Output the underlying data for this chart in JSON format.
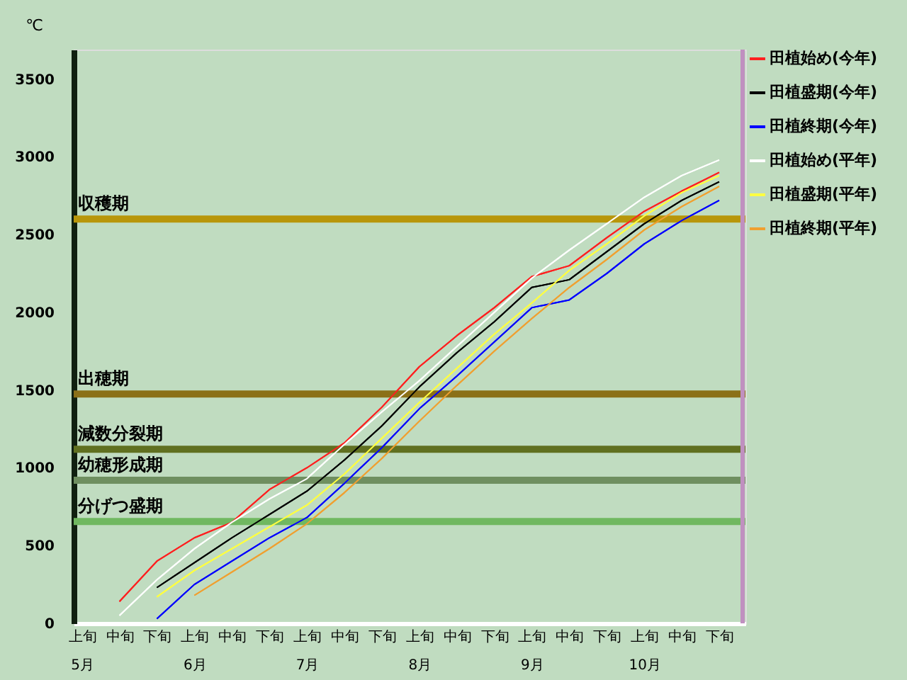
{
  "chart_data": {
    "type": "line",
    "ylabel": "℃",
    "ylim": [
      0,
      3690
    ],
    "categories": [
      "上旬\n5月",
      "中旬",
      "下旬",
      "上旬\n6月",
      "中旬",
      "下旬",
      "上旬\n7月",
      "中旬",
      "下旬",
      "上旬\n8月",
      "中旬",
      "下旬",
      "上旬\n9月",
      "中旬",
      "下旬",
      "上旬\n10月",
      "中旬",
      "下旬"
    ],
    "yticks": [
      0,
      500,
      1000,
      1500,
      2000,
      2500,
      3000,
      3500
    ],
    "grid": false,
    "legend": "right",
    "marker": "none",
    "line_style": "solid",
    "series": [
      {
        "name": "田植始め(今年)",
        "color": "#ff2020",
        "values": [
          null,
          140,
          400,
          550,
          650,
          860,
          1000,
          1160,
          1390,
          1650,
          1850,
          2030,
          2230,
          2300,
          2480,
          2650,
          2780,
          2900
        ]
      },
      {
        "name": "田植盛期(今年)",
        "color": "#000000",
        "values": [
          null,
          null,
          230,
          390,
          550,
          700,
          850,
          1050,
          1270,
          1520,
          1740,
          1940,
          2160,
          2210,
          2390,
          2570,
          2720,
          2840
        ]
      },
      {
        "name": "田植終期(今年)",
        "color": "#0000ff",
        "values": [
          null,
          null,
          30,
          250,
          400,
          550,
          680,
          900,
          1130,
          1380,
          1590,
          1810,
          2030,
          2080,
          2250,
          2440,
          2590,
          2720
        ]
      },
      {
        "name": "田植始め(平年)",
        "color": "#ffffff",
        "values": [
          null,
          50,
          280,
          480,
          650,
          800,
          930,
          1150,
          1360,
          1560,
          1780,
          2000,
          2220,
          2400,
          2570,
          2740,
          2880,
          2980
        ]
      },
      {
        "name": "田植盛期(平年)",
        "color": "#ffff40",
        "values": [
          null,
          null,
          170,
          340,
          480,
          620,
          760,
          960,
          1190,
          1420,
          1640,
          1860,
          2060,
          2270,
          2440,
          2620,
          2770,
          2880
        ]
      },
      {
        "name": "田植終期(平年)",
        "color": "#f0a030",
        "values": [
          null,
          null,
          null,
          180,
          330,
          480,
          640,
          840,
          1060,
          1300,
          1530,
          1750,
          1960,
          2160,
          2340,
          2530,
          2680,
          2810
        ]
      }
    ],
    "ref_lines": [
      {
        "axis": "y",
        "value": 2600,
        "label": "収穫期",
        "color": "#b8960a"
      },
      {
        "axis": "y",
        "value": 1475,
        "label": "出穂期",
        "color": "#8b7018"
      },
      {
        "axis": "y",
        "value": 1120,
        "label": "減数分裂期",
        "color": "#607020"
      },
      {
        "axis": "y",
        "value": 920,
        "label": "幼穂形成期",
        "color": "#6f8f60"
      },
      {
        "axis": "y",
        "value": 655,
        "label": "分げつ盛期",
        "color": "#70b860"
      }
    ]
  }
}
